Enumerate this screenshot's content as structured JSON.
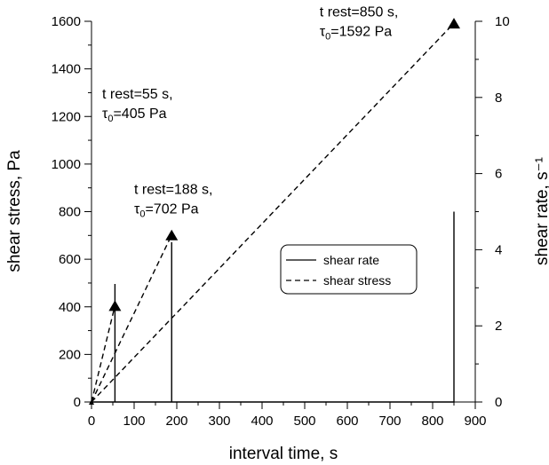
{
  "chart_data": {
    "type": "line",
    "title": "",
    "xlabel": "interval time, s",
    "ylabel_left": "shear stress, Pa",
    "ylabel_right": "shear rate, s⁻¹",
    "xlim": [
      0,
      900
    ],
    "ylim_left": [
      0,
      1600
    ],
    "ylim_right": [
      0,
      10
    ],
    "x_ticks": [
      0,
      100,
      200,
      300,
      400,
      500,
      600,
      700,
      800,
      900
    ],
    "y_left_ticks": [
      0,
      200,
      400,
      600,
      800,
      1000,
      1200,
      1400,
      1600
    ],
    "y_right_ticks": [
      0,
      2,
      4,
      6,
      8,
      10
    ],
    "grid": false,
    "legend_position": "center-right",
    "legend": [
      {
        "name": "shear rate",
        "style": "solid"
      },
      {
        "name": "shear stress",
        "style": "dashed"
      }
    ],
    "series": [
      {
        "name": "shear rate",
        "axis": "right",
        "points": [
          [
            0,
            0
          ],
          [
            55,
            0
          ],
          [
            55,
            3.1
          ],
          [
            55,
            0
          ],
          [
            188,
            0
          ],
          [
            188,
            4.2
          ],
          [
            188,
            0
          ],
          [
            850,
            0
          ],
          [
            850,
            5.0
          ]
        ]
      },
      {
        "name": "shear stress",
        "axis": "left",
        "segments": [
          [
            [
              0,
              0
            ],
            [
              55,
              405
            ]
          ],
          [
            [
              0,
              0
            ],
            [
              188,
              702
            ]
          ],
          [
            [
              0,
              0
            ],
            [
              850,
              1592
            ]
          ]
        ]
      }
    ],
    "markers": [
      {
        "x": 55,
        "y": 405
      },
      {
        "x": 188,
        "y": 702
      },
      {
        "x": 850,
        "y": 1592
      }
    ],
    "annotations": [
      {
        "id": "ann-55",
        "line1": "t rest=55 s,",
        "tau_sym": "τ",
        "tau_sub": "0",
        "tau_val": "=405 Pa",
        "x": 25,
        "y": 1275
      },
      {
        "id": "ann-188",
        "line1": "t rest=188 s,",
        "tau_sym": "τ",
        "tau_sub": "0",
        "tau_val": "=702 Pa",
        "x": 100,
        "y": 875
      },
      {
        "id": "ann-850",
        "line1": "t rest=850 s,",
        "tau_sym": "τ",
        "tau_sub": "0",
        "tau_val": "=1592 Pa",
        "x": 535,
        "y": 1620
      }
    ]
  }
}
